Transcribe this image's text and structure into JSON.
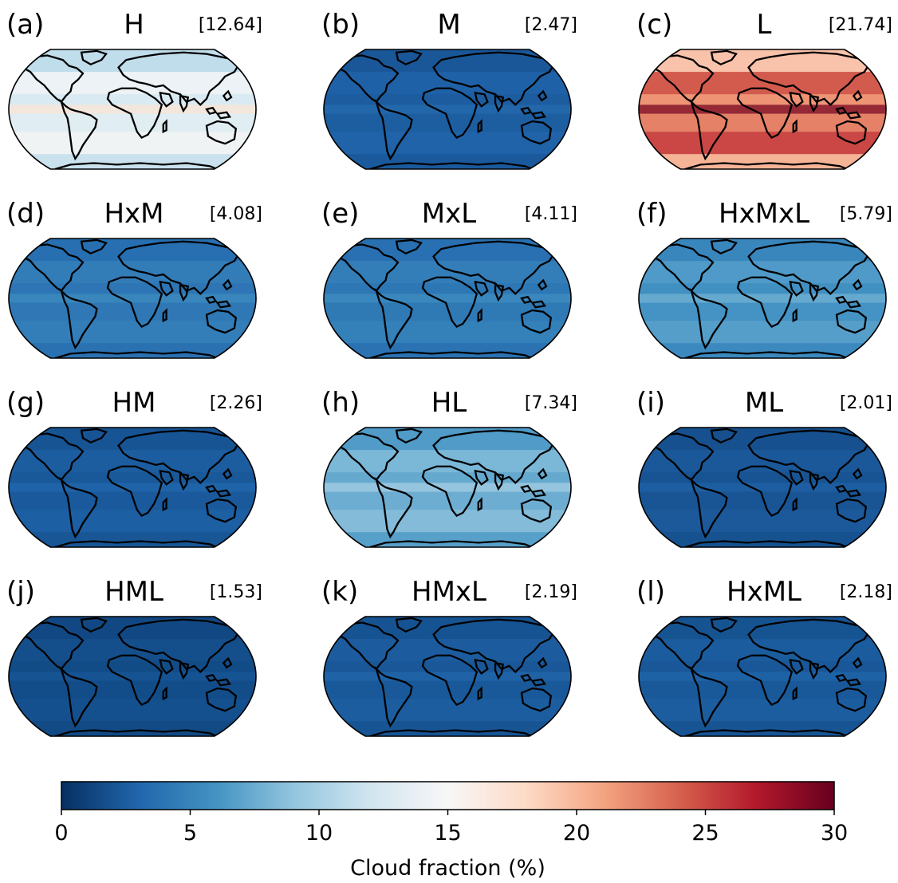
{
  "chart_data": {
    "type": "heatmap",
    "projection": "Robinson world map",
    "panels": [
      {
        "letter": "(a)",
        "title": "H",
        "mean": "[12.64]",
        "mean_value": 12.64
      },
      {
        "letter": "(b)",
        "title": "M",
        "mean": "[2.47]",
        "mean_value": 2.47
      },
      {
        "letter": "(c)",
        "title": "L",
        "mean": "[21.74]",
        "mean_value": 21.74
      },
      {
        "letter": "(d)",
        "title": "HxM",
        "mean": "[4.08]",
        "mean_value": 4.08
      },
      {
        "letter": "(e)",
        "title": "MxL",
        "mean": "[4.11]",
        "mean_value": 4.11
      },
      {
        "letter": "(f)",
        "title": "HxMxL",
        "mean": "[5.79]",
        "mean_value": 5.79
      },
      {
        "letter": "(g)",
        "title": "HM",
        "mean": "[2.26]",
        "mean_value": 2.26
      },
      {
        "letter": "(h)",
        "title": "HL",
        "mean": "[7.34]",
        "mean_value": 7.34
      },
      {
        "letter": "(i)",
        "title": "ML",
        "mean": "[2.01]",
        "mean_value": 2.01
      },
      {
        "letter": "(j)",
        "title": "HML",
        "mean": "[1.53]",
        "mean_value": 1.53
      },
      {
        "letter": "(k)",
        "title": "HMxL",
        "mean": "[2.19]",
        "mean_value": 2.19
      },
      {
        "letter": "(l)",
        "title": "HxML",
        "mean": "[2.18]",
        "mean_value": 2.18
      }
    ],
    "colorbar": {
      "label": "Cloud fraction (%)",
      "range": [
        0,
        30
      ],
      "ticks": [
        "0",
        "5",
        "10",
        "15",
        "20",
        "25",
        "30"
      ],
      "colormap": [
        "#053061",
        "#2166ac",
        "#4393c3",
        "#92c5de",
        "#d1e5f0",
        "#f7f7f7",
        "#fddbc7",
        "#f4a582",
        "#d6604d",
        "#b2182b",
        "#67001f"
      ]
    }
  }
}
